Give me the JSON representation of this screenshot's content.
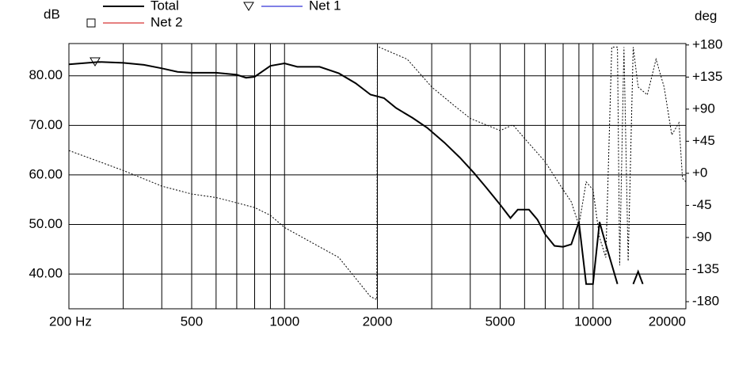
{
  "chart_data": {
    "type": "line",
    "y_label": "dB",
    "y2_label": "deg",
    "log_x": true,
    "grid": true,
    "xlim": [
      200,
      20000
    ],
    "xticks": [
      {
        "value": 200,
        "label": "200 Hz"
      },
      500,
      1000,
      2000,
      5000,
      10000,
      20000
    ],
    "x_minor_ticks": [
      300,
      400,
      600,
      700,
      800,
      900,
      3000,
      4000,
      6000,
      7000,
      8000,
      9000
    ],
    "ylim": [
      33,
      86.5
    ],
    "yticks": [
      {
        "value": 40,
        "label": "40.00"
      },
      {
        "value": 50,
        "label": "50.00"
      },
      {
        "value": 60,
        "label": "60.00"
      },
      {
        "value": 70,
        "label": "70.00"
      },
      {
        "value": 80,
        "label": "80.00"
      }
    ],
    "y2lim": [
      -190,
      182
    ],
    "y2ticks": [
      {
        "value": 180,
        "label": "+180"
      },
      {
        "value": 135,
        "label": "+135"
      },
      {
        "value": 90,
        "label": "+90"
      },
      {
        "value": 45,
        "label": "+45"
      },
      {
        "value": 0,
        "label": "+0"
      },
      -45,
      -90,
      -135,
      -180
    ],
    "legend": [
      {
        "name": "Total",
        "color": "#000000"
      },
      {
        "name": "Net 1",
        "color": "#0000cc",
        "marker": "triangle"
      },
      {
        "name": "Net 2",
        "color": "#cc0000",
        "marker": "square"
      }
    ],
    "series": [
      {
        "name": "Total",
        "color": "#000000",
        "style": "solid",
        "x": [
          200,
          250,
          300,
          350,
          400,
          450,
          500,
          600,
          700,
          750,
          800,
          900,
          1000,
          1100,
          1300,
          1500,
          1700,
          1900,
          2100,
          2300,
          2600,
          2900,
          3300,
          3700,
          4100,
          4500,
          5000,
          5400,
          5700,
          6200,
          6600,
          7000,
          7500,
          8000,
          8500,
          9000,
          9500,
          10000,
          10500,
          11000,
          12000,
          12700,
          13500,
          14000,
          14500
        ],
        "values": [
          82.3,
          82.8,
          82.6,
          82.2,
          81.5,
          80.8,
          80.6,
          80.6,
          80.2,
          79.6,
          79.8,
          82,
          82.5,
          81.8,
          81.8,
          80.5,
          78.5,
          76.2,
          75.5,
          73.5,
          71.5,
          69.5,
          66.5,
          63.5,
          60.5,
          57.5,
          54,
          51.3,
          53,
          53,
          51,
          48,
          45.7,
          45.5,
          46,
          50.5,
          38,
          38,
          50.5,
          46,
          38,
          null,
          38,
          40.5,
          38
        ]
      },
      {
        "color": "#000000",
        "style": "dotted",
        "axis": "y2",
        "x": [
          200,
          300,
          400,
          500,
          600,
          800,
          900,
          1000,
          1500,
          1900,
          1990,
          2000,
          2500,
          3000,
          3500,
          4000,
          5000,
          5500,
          6000,
          7000,
          8000,
          8500,
          9000,
          9500,
          10000,
          10500,
          11000,
          11500,
          12000,
          12200,
          12600,
          13000,
          13500,
          14000,
          15000,
          16000,
          17000,
          18000,
          19000,
          19500,
          20000
        ],
        "values": [
          32,
          4,
          -18,
          -29,
          -34,
          -48,
          -59,
          -76,
          -118,
          -173,
          -177,
          178,
          160,
          121,
          97,
          77,
          60,
          68,
          49,
          16,
          -23,
          -40,
          -73,
          -12,
          -23,
          -90,
          -118,
          177,
          177,
          -129,
          177,
          -123,
          177,
          121,
          110,
          160,
          121,
          54,
          71,
          -7,
          -12
        ]
      }
    ]
  }
}
